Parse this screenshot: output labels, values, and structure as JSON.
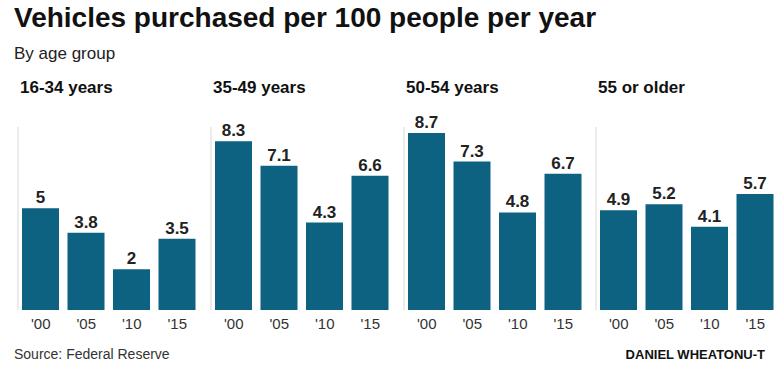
{
  "title": "Vehicles purchased per 100 people per year",
  "subtitle": "By age group",
  "source": "Source: Federal Reserve",
  "credit": "DANIEL WHEATONU-T",
  "chart_data": [
    {
      "type": "bar",
      "title": "16-34 years",
      "categories": [
        "'00",
        "'05",
        "'10",
        "'15"
      ],
      "values": [
        5,
        3.8,
        2,
        3.5
      ],
      "color": "#0c6280",
      "ylim": [
        0,
        9
      ],
      "yticks": [
        0,
        9
      ],
      "grid": false,
      "data_labels": true,
      "tick_labels": "x"
    },
    {
      "type": "bar",
      "title": "35-49 years",
      "categories": [
        "'00",
        "'05",
        "'10",
        "'15"
      ],
      "values": [
        8.3,
        7.1,
        4.3,
        6.6
      ],
      "color": "#0c6280",
      "ylim": [
        0,
        9
      ],
      "yticks": [
        0,
        9
      ],
      "grid": false,
      "data_labels": true,
      "tick_labels": "x"
    },
    {
      "type": "bar",
      "title": "50-54 years",
      "categories": [
        "'00",
        "'05",
        "'10",
        "'15"
      ],
      "values": [
        8.7,
        7.3,
        4.8,
        6.7
      ],
      "color": "#0c6280",
      "ylim": [
        0,
        9
      ],
      "yticks": [
        0,
        9
      ],
      "grid": false,
      "data_labels": true,
      "tick_labels": "x"
    },
    {
      "type": "bar",
      "title": "55 or older",
      "categories": [
        "'00",
        "'05",
        "'10",
        "'15"
      ],
      "values": [
        4.9,
        5.2,
        4.1,
        5.7
      ],
      "color": "#0c6280",
      "ylim": [
        0,
        9
      ],
      "yticks": [
        0,
        9
      ],
      "grid": false,
      "data_labels": true,
      "tick_labels": "x"
    }
  ]
}
